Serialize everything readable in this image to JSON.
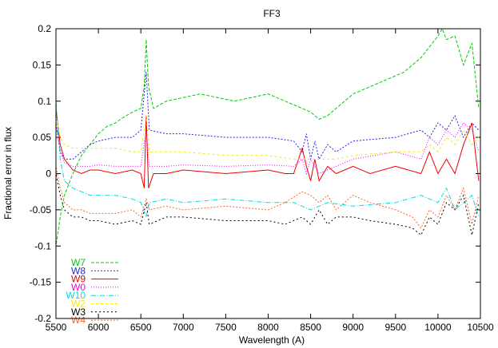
{
  "chart_data": {
    "type": "line",
    "title": "FF3",
    "xlabel": "Wavelength (A)",
    "ylabel": "Fractional error in flux",
    "xlim": [
      5500,
      10500
    ],
    "ylim": [
      -0.2,
      0.2
    ],
    "xticks": [
      5500,
      6000,
      6500,
      7000,
      7500,
      8000,
      8500,
      9000,
      9500,
      10000,
      10500
    ],
    "yticks": [
      -0.2,
      -0.15,
      -0.1,
      -0.05,
      0,
      0.05,
      0.1,
      0.15,
      0.2
    ],
    "grid": false,
    "legend_position": "bottom-left",
    "series": [
      {
        "name": "W7",
        "color": "#00cc00",
        "dash": "4,2",
        "x": [
          5480,
          5500,
          5550,
          5600,
          5700,
          5800,
          5900,
          6000,
          6100,
          6200,
          6300,
          6400,
          6500,
          6540,
          6563,
          6590,
          6650,
          6800,
          7000,
          7200,
          7400,
          7600,
          7800,
          8000,
          8200,
          8400,
          8500,
          8600,
          8700,
          8800,
          9000,
          9200,
          9400,
          9600,
          9800,
          9900,
          10000,
          10050,
          10100,
          10200,
          10300,
          10400,
          10480
        ],
        "y": [
          -0.13,
          -0.1,
          -0.06,
          -0.03,
          0.0,
          0.025,
          0.04,
          0.055,
          0.065,
          0.07,
          0.078,
          0.085,
          0.09,
          0.12,
          0.185,
          0.12,
          0.09,
          0.1,
          0.105,
          0.11,
          0.105,
          0.1,
          0.105,
          0.11,
          0.1,
          0.09,
          0.085,
          0.075,
          0.08,
          0.09,
          0.11,
          0.12,
          0.13,
          0.14,
          0.16,
          0.175,
          0.19,
          0.2,
          0.185,
          0.19,
          0.15,
          0.18,
          0.09
        ]
      },
      {
        "name": "W8",
        "color": "#2222ee",
        "dash": "2,2",
        "x": [
          5480,
          5500,
          5550,
          5600,
          5700,
          5800,
          5900,
          6000,
          6200,
          6400,
          6500,
          6563,
          6600,
          6800,
          7000,
          7500,
          8000,
          8300,
          8400,
          8450,
          8500,
          8550,
          8600,
          8700,
          8800,
          9000,
          9500,
          9800,
          9900,
          10000,
          10100,
          10200,
          10300,
          10400,
          10480
        ],
        "y": [
          0.13,
          0.07,
          0.03,
          0.02,
          0.02,
          0.03,
          0.04,
          0.045,
          0.05,
          0.05,
          0.06,
          0.14,
          0.06,
          0.055,
          0.055,
          0.05,
          0.05,
          0.045,
          0.03,
          0.055,
          0.02,
          0.045,
          0.02,
          0.04,
          0.03,
          0.045,
          0.05,
          0.06,
          0.05,
          0.07,
          0.06,
          0.08,
          0.05,
          0.07,
          0.06
        ]
      },
      {
        "name": "W9",
        "color": "#ee0000",
        "dash": "",
        "x": [
          5480,
          5500,
          5550,
          5600,
          5700,
          5800,
          5900,
          6000,
          6200,
          6400,
          6500,
          6540,
          6563,
          6590,
          6650,
          6800,
          7000,
          7500,
          8000,
          8200,
          8300,
          8400,
          8450,
          8500,
          8550,
          8600,
          8700,
          8800,
          9000,
          9200,
          9500,
          9800,
          9900,
          10000,
          10100,
          10200,
          10300,
          10400,
          10480
        ],
        "y": [
          0.14,
          0.09,
          0.04,
          0.02,
          0.005,
          0.0,
          0.005,
          0.005,
          0.0,
          0.005,
          0.0,
          -0.02,
          0.08,
          -0.02,
          0.0,
          0.0,
          0.005,
          0.0,
          0.005,
          0.0,
          0.0,
          0.035,
          0.01,
          -0.01,
          0.02,
          -0.01,
          0.01,
          0.0,
          0.01,
          0.0,
          0.01,
          0.0,
          0.03,
          0.0,
          0.02,
          0.0,
          0.04,
          0.07,
          -0.01
        ]
      },
      {
        "name": "W0",
        "color": "#ee00ee",
        "dash": "1,2",
        "x": [
          5480,
          5500,
          5550,
          5600,
          5700,
          5800,
          5900,
          6000,
          6200,
          6400,
          6500,
          6563,
          6600,
          6800,
          7000,
          7500,
          8000,
          8300,
          8400,
          8450,
          8500,
          8600,
          8800,
          9000,
          9500,
          9800,
          9900,
          10000,
          10100,
          10200,
          10300,
          10400,
          10480
        ],
        "y": [
          0.11,
          0.07,
          0.03,
          0.015,
          0.01,
          0.01,
          0.01,
          0.012,
          0.01,
          0.01,
          0.01,
          0.06,
          0.01,
          0.01,
          0.012,
          0.01,
          0.012,
          0.01,
          0.02,
          0.0,
          0.02,
          0.0,
          0.01,
          0.02,
          0.03,
          0.02,
          0.05,
          0.04,
          0.06,
          0.05,
          0.07,
          0.06,
          0.03
        ]
      },
      {
        "name": "W10",
        "color": "#00dddd",
        "dash": "6,2,1,2",
        "x": [
          5480,
          5500,
          5550,
          5600,
          5700,
          5800,
          5900,
          6000,
          6200,
          6400,
          6500,
          6563,
          6600,
          6800,
          7000,
          7500,
          8000,
          8300,
          8500,
          8700,
          9000,
          9500,
          9800,
          10000,
          10100,
          10200,
          10300,
          10400,
          10480
        ],
        "y": [
          0.17,
          0.1,
          0.02,
          -0.01,
          -0.02,
          -0.025,
          -0.03,
          -0.03,
          -0.03,
          -0.035,
          -0.04,
          -0.06,
          -0.04,
          -0.035,
          -0.04,
          -0.035,
          -0.04,
          -0.04,
          -0.05,
          -0.04,
          -0.045,
          -0.04,
          -0.03,
          -0.04,
          -0.02,
          -0.05,
          -0.04,
          -0.03,
          -0.06
        ]
      },
      {
        "name": "W2",
        "color": "#eeee00",
        "dash": "3,3",
        "x": [
          5480,
          5500,
          5550,
          5600,
          5700,
          5800,
          5900,
          6000,
          6200,
          6400,
          6500,
          6563,
          6600,
          6800,
          7000,
          7500,
          8000,
          8300,
          8400,
          8500,
          8600,
          8800,
          9000,
          9500,
          9800,
          9900,
          10000,
          10100,
          10200,
          10300,
          10400,
          10480
        ],
        "y": [
          0.12,
          0.08,
          0.05,
          0.04,
          0.035,
          0.035,
          0.035,
          0.035,
          0.035,
          0.03,
          0.03,
          0.08,
          0.03,
          0.03,
          0.03,
          0.025,
          0.025,
          0.02,
          0.02,
          0.02,
          0.02,
          0.02,
          0.025,
          0.03,
          0.03,
          0.04,
          0.03,
          0.05,
          0.04,
          0.06,
          0.04,
          0.05
        ]
      },
      {
        "name": "W3",
        "color": "#000000",
        "dash": "2,3",
        "x": [
          5480,
          5500,
          5550,
          5600,
          5700,
          5800,
          5900,
          6000,
          6200,
          6400,
          6500,
          6563,
          6600,
          6800,
          7000,
          7500,
          8000,
          8200,
          8400,
          8500,
          8600,
          8700,
          8800,
          9000,
          9200,
          9500,
          9700,
          9800,
          9900,
          10000,
          10100,
          10200,
          10300,
          10400,
          10480
        ],
        "y": [
          0.02,
          0.0,
          -0.03,
          -0.05,
          -0.06,
          -0.06,
          -0.065,
          -0.065,
          -0.07,
          -0.065,
          -0.07,
          -0.04,
          -0.07,
          -0.06,
          -0.06,
          -0.065,
          -0.065,
          -0.07,
          -0.06,
          -0.07,
          -0.05,
          -0.07,
          -0.06,
          -0.06,
          -0.065,
          -0.07,
          -0.075,
          -0.085,
          -0.06,
          -0.07,
          -0.04,
          -0.05,
          -0.03,
          -0.085,
          -0.04
        ]
      },
      {
        "name": "W4",
        "color": "#ff6633",
        "dash": "2,2",
        "x": [
          5480,
          5500,
          5550,
          5600,
          5700,
          5800,
          5900,
          6000,
          6200,
          6400,
          6500,
          6563,
          6600,
          6800,
          7000,
          7500,
          8000,
          8200,
          8400,
          8500,
          8600,
          8700,
          8800,
          9000,
          9200,
          9500,
          9700,
          9800,
          9900,
          10000,
          10100,
          10200,
          10300,
          10400,
          10480
        ],
        "y": [
          0.03,
          0.01,
          -0.02,
          -0.04,
          -0.05,
          -0.05,
          -0.055,
          -0.055,
          -0.055,
          -0.05,
          -0.06,
          -0.035,
          -0.05,
          -0.045,
          -0.05,
          -0.045,
          -0.05,
          -0.04,
          -0.025,
          -0.03,
          -0.04,
          -0.03,
          -0.05,
          -0.03,
          -0.04,
          -0.05,
          -0.06,
          -0.075,
          -0.05,
          -0.06,
          -0.03,
          -0.05,
          -0.02,
          -0.07,
          -0.03
        ]
      }
    ]
  }
}
